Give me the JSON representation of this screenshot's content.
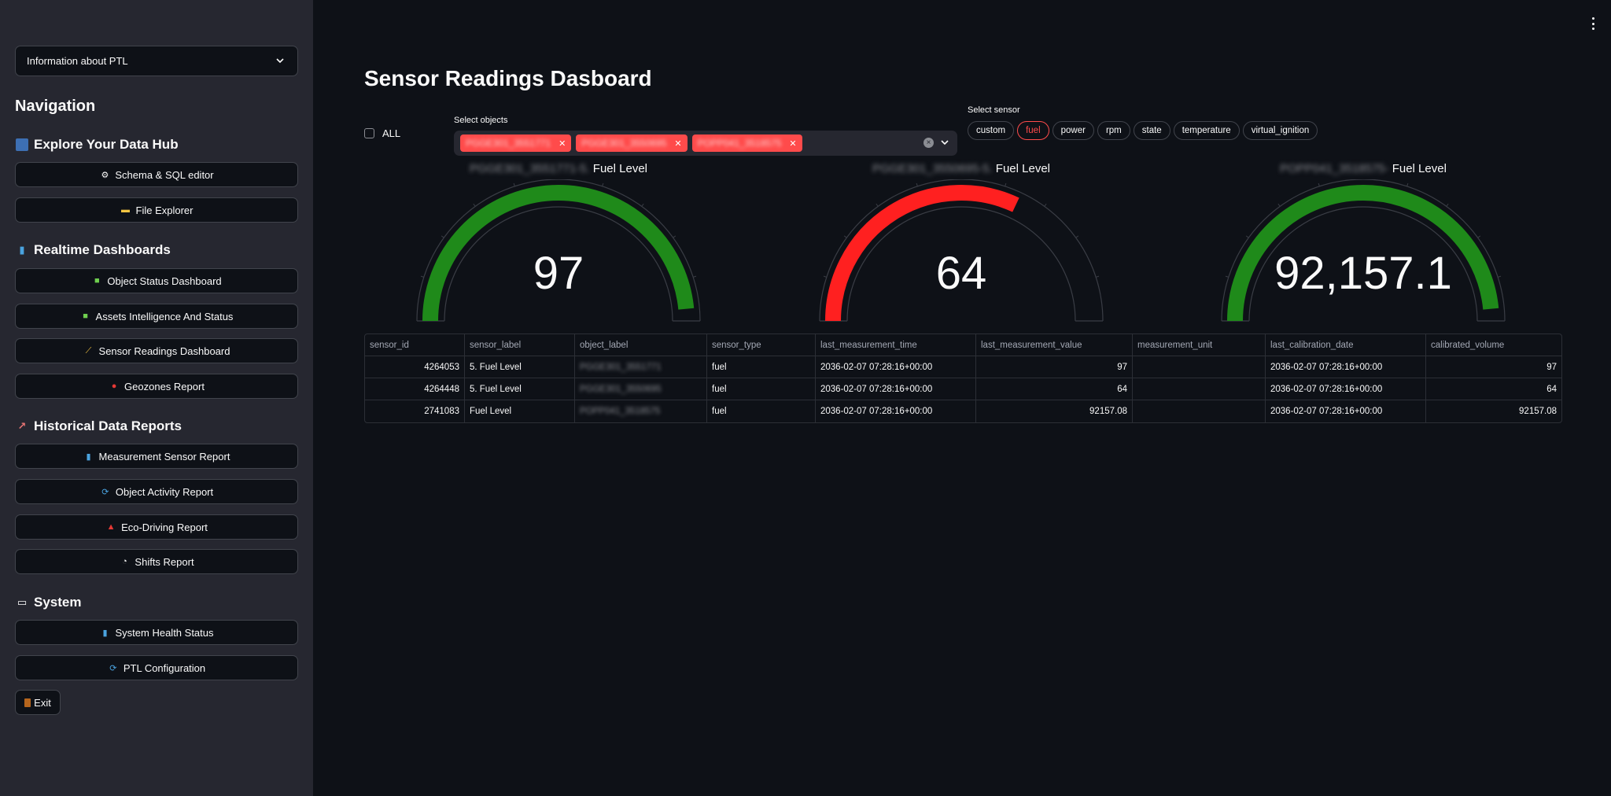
{
  "sidebar": {
    "info_select": "Information about PTL",
    "nav_title": "Navigation",
    "sections": [
      {
        "title": "Explore Your Data Hub",
        "icon": "db-icon",
        "items": [
          {
            "label": "Schema & SQL editor",
            "icon": "gear-icon"
          },
          {
            "label": "File Explorer",
            "icon": "folder-icon"
          }
        ]
      },
      {
        "title": "Realtime Dashboards",
        "icon": "bar-chart-icon",
        "items": [
          {
            "label": "Object Status Dashboard",
            "icon": "truck-icon"
          },
          {
            "label": "Assets Intelligence And Status",
            "icon": "truck-icon"
          },
          {
            "label": "Sensor Readings Dashboard",
            "icon": "ruler-icon"
          },
          {
            "label": "Geozones Report",
            "icon": "pin-icon"
          }
        ]
      },
      {
        "title": "Historical Data Reports",
        "icon": "trend-icon",
        "items": [
          {
            "label": "Measurement Sensor Report",
            "icon": "bar-chart-icon"
          },
          {
            "label": "Object Activity Report",
            "icon": "refresh-icon"
          },
          {
            "label": "Eco-Driving Report",
            "icon": "car-icon"
          },
          {
            "label": "Shifts Report",
            "icon": "clock-icon"
          }
        ]
      },
      {
        "title": "System",
        "icon": "monitor-icon",
        "items": [
          {
            "label": "System Health Status",
            "icon": "bar-chart-icon"
          },
          {
            "label": "PTL Configuration",
            "icon": "refresh-icon"
          }
        ]
      }
    ],
    "exit_label": "Exit"
  },
  "main": {
    "title": "Sensor Readings Dasboard",
    "all_label": "ALL",
    "select_objects_label": "Select objects",
    "selected_objects": [
      "PGGE301_3551771",
      "PGGE301_3550695",
      "POPP041_3518575"
    ],
    "select_sensor_label": "Select sensor",
    "sensors": [
      "custom",
      "fuel",
      "power",
      "rpm",
      "state",
      "temperature",
      "virtual_ignition"
    ],
    "active_sensor": "fuel"
  },
  "gauges": [
    {
      "object": "PGGE301_3551771-5.",
      "label": "Fuel Level",
      "display": "97",
      "value": 97,
      "max": 100,
      "color": "#1f8a1a"
    },
    {
      "object": "PGGE301_3550695-5.",
      "label": "Fuel Level",
      "display": "64",
      "value": 64,
      "max": 100,
      "color": "#ff2020"
    },
    {
      "object": "POPP041_3518575-",
      "label": "Fuel Level",
      "display": "92,157.1",
      "value": 92157.1,
      "max": 95000,
      "color": "#1f8a1a"
    }
  ],
  "table": {
    "columns": [
      "sensor_id",
      "sensor_label",
      "object_label",
      "sensor_type",
      "last_measurement_time",
      "last_measurement_value",
      "measurement_unit",
      "last_calibration_date",
      "calibrated_volume"
    ],
    "rows": [
      [
        "4264053",
        "5. Fuel Level",
        "PGGE301_3551771",
        "fuel",
        "2036-02-07 07:28:16+00:00",
        "97",
        "",
        "2036-02-07 07:28:16+00:00",
        "97"
      ],
      [
        "4264448",
        "5. Fuel Level",
        "PGGE301_3550695",
        "fuel",
        "2036-02-07 07:28:16+00:00",
        "64",
        "",
        "2036-02-07 07:28:16+00:00",
        "64"
      ],
      [
        "2741083",
        "Fuel Level",
        "POPP041_3518575",
        "fuel",
        "2036-02-07 07:28:16+00:00",
        "92157.08",
        "",
        "2036-02-07 07:28:16+00:00",
        "92157.08"
      ]
    ]
  }
}
